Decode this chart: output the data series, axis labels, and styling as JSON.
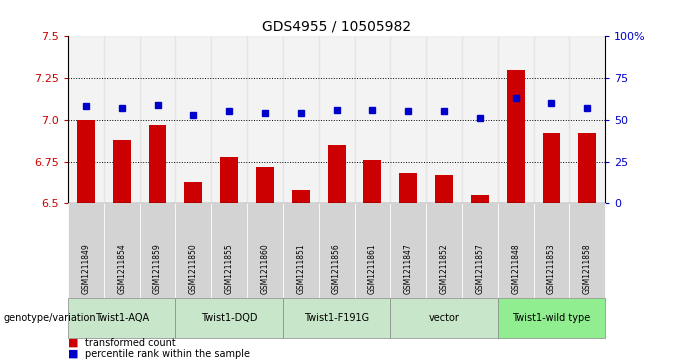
{
  "title": "GDS4955 / 10505982",
  "samples": [
    "GSM1211849",
    "GSM1211854",
    "GSM1211859",
    "GSM1211850",
    "GSM1211855",
    "GSM1211860",
    "GSM1211851",
    "GSM1211856",
    "GSM1211861",
    "GSM1211847",
    "GSM1211852",
    "GSM1211857",
    "GSM1211848",
    "GSM1211853",
    "GSM1211858"
  ],
  "bar_values": [
    7.0,
    6.88,
    6.97,
    6.63,
    6.78,
    6.72,
    6.58,
    6.85,
    6.76,
    6.68,
    6.67,
    6.55,
    7.3,
    6.92,
    6.92
  ],
  "percentile_values": [
    58,
    57,
    59,
    53,
    55,
    54,
    54,
    56,
    56,
    55,
    55,
    51,
    63,
    60,
    57
  ],
  "groups": [
    {
      "label": "Twist1-AQA",
      "start": 0,
      "end": 3,
      "color": "#c8e6c9"
    },
    {
      "label": "Twist1-DQD",
      "start": 3,
      "end": 6,
      "color": "#c8e6c9"
    },
    {
      "label": "Twist1-F191G",
      "start": 6,
      "end": 9,
      "color": "#c8e6c9"
    },
    {
      "label": "vector",
      "start": 9,
      "end": 12,
      "color": "#c8e6c9"
    },
    {
      "label": "Twist1-wild type",
      "start": 12,
      "end": 15,
      "color": "#90ee90"
    }
  ],
  "ylim_left": [
    6.5,
    7.5
  ],
  "ylim_right": [
    0,
    100
  ],
  "yticks_left": [
    6.5,
    6.75,
    7.0,
    7.25,
    7.5
  ],
  "yticks_right": [
    0,
    25,
    50,
    75,
    100
  ],
  "bar_color": "#cc0000",
  "dot_color": "#0000cc",
  "bar_bottom": 6.5,
  "legend_items": [
    {
      "label": "transformed count",
      "color": "#cc0000"
    },
    {
      "label": "percentile rank within the sample",
      "color": "#0000cc"
    }
  ],
  "genotype_label": "genotype/variation",
  "fig_bg": "#ffffff",
  "sample_box_color": "#d3d3d3",
  "grid_dotted_ticks": [
    6.75,
    7.0,
    7.25
  ],
  "right_tick_labels": [
    "0",
    "25",
    "50",
    "75",
    "100%"
  ]
}
